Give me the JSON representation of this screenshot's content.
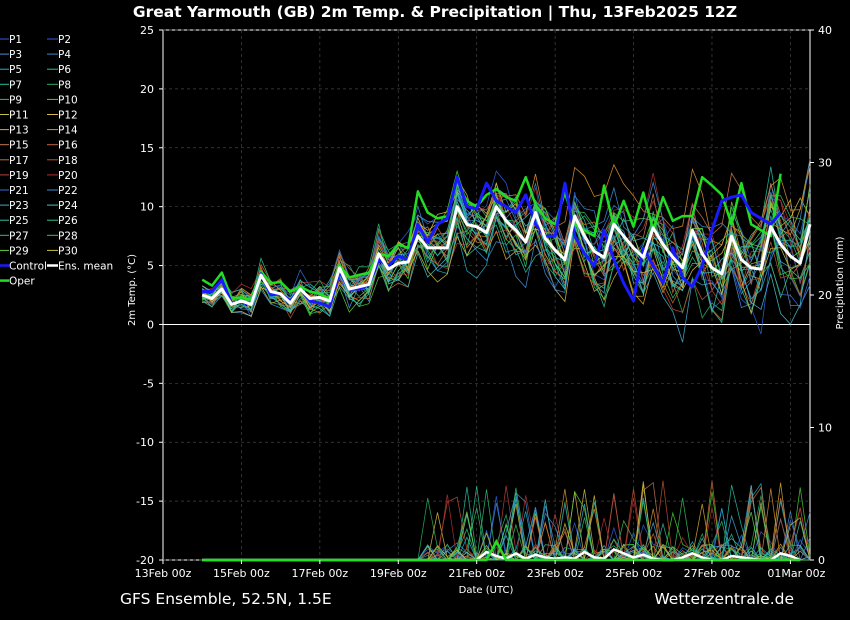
{
  "header": {
    "title": "Great Yarmouth  (GB)  2m Temp. & Precipitation | Thu, 13Feb2025 12Z"
  },
  "footer": {
    "left": "GFS Ensemble, 52.5N, 1.5E",
    "right": "Wetterzentrale.de"
  },
  "chart_data": {
    "type": "line",
    "x_label": "Date (UTC)",
    "y_label_left": "2m Temp. (°C)",
    "y_label_right": "Precipitation (mm)",
    "x_ticks": [
      "13Feb 00z",
      "15Feb 00z",
      "17Feb 00z",
      "19Feb 00z",
      "21Feb 00z",
      "23Feb 00z",
      "25Feb 00z",
      "27Feb 00z",
      "01Mar 00z"
    ],
    "x_tick_hours": [
      0,
      48,
      96,
      144,
      192,
      240,
      288,
      336,
      384
    ],
    "x_start_hour": 24,
    "step_hours": 6,
    "ylim_left": [
      -20,
      25
    ],
    "y_ticks_left": [
      25,
      20,
      15,
      10,
      5,
      0,
      -5,
      -10,
      -15,
      -20
    ],
    "right_axis": {
      "ylim_right": [
        0,
        40
      ],
      "y_ticks_right": [
        40,
        30,
        20,
        10,
        0
      ]
    },
    "grid": true,
    "legend": {
      "placement": "left",
      "entries": [
        {
          "label": "P1",
          "color": "#2f5fe0"
        },
        {
          "label": "P2",
          "color": "#2f5fe0"
        },
        {
          "label": "P3",
          "color": "#4a8fd8"
        },
        {
          "label": "P4",
          "color": "#3a8ad0"
        },
        {
          "label": "P5",
          "color": "#22b0c8"
        },
        {
          "label": "P6",
          "color": "#25c0a0"
        },
        {
          "label": "P7",
          "color": "#25c0a0"
        },
        {
          "label": "P8",
          "color": "#2ab060"
        },
        {
          "label": "P9",
          "color": "#30c060"
        },
        {
          "label": "P10",
          "color": "#4ad030"
        },
        {
          "label": "P11",
          "color": "#c8c040"
        },
        {
          "label": "P12",
          "color": "#d8b848"
        },
        {
          "label": "P13",
          "color": "#d8a830"
        },
        {
          "label": "P14",
          "color": "#d89030"
        },
        {
          "label": "P15",
          "color": "#c87850"
        },
        {
          "label": "P16",
          "color": "#c06a40"
        },
        {
          "label": "P17",
          "color": "#c86a30"
        },
        {
          "label": "P18",
          "color": "#c05030"
        },
        {
          "label": "P19",
          "color": "#b84040"
        },
        {
          "label": "P20",
          "color": "#b03030"
        },
        {
          "label": "P21",
          "color": "#3070d8"
        },
        {
          "label": "P22",
          "color": "#3a90d8"
        },
        {
          "label": "P23",
          "color": "#40a8d0"
        },
        {
          "label": "P24",
          "color": "#40c0c8"
        },
        {
          "label": "P25",
          "color": "#30c0a8"
        },
        {
          "label": "P26",
          "color": "#30c090"
        },
        {
          "label": "P27",
          "color": "#30c070"
        },
        {
          "label": "P28",
          "color": "#40c060"
        },
        {
          "label": "P29",
          "color": "#60d040"
        },
        {
          "label": "P30",
          "color": "#c8c040"
        },
        {
          "label": "Control",
          "color": "#1a1aff"
        },
        {
          "label": "Ens. mean",
          "color": "#ffffff"
        },
        {
          "label": "Oper",
          "color": "#22dd22"
        }
      ]
    },
    "highlight_series": [
      {
        "name": "Oper",
        "color": "#22dd22",
        "values": [
          3.8,
          3.3,
          4.4,
          2.2,
          2.3,
          2.1,
          4.5,
          3.5,
          3.6,
          2.8,
          3.2,
          2.8,
          2.6,
          2.2,
          5.0,
          4.0,
          4.2,
          4.4,
          6.0,
          5.8,
          6.8,
          6.5,
          11.3,
          9.5,
          9.0,
          9.2,
          12.0,
          10.5,
          10.0,
          11.0,
          11.5,
          10.8,
          10.5,
          12.5,
          10.2,
          9.0,
          8.5,
          11.2,
          8.5,
          8.0,
          7.5,
          11.8,
          8.3,
          10.5,
          8.3,
          11.2,
          8.0,
          10.8,
          8.8,
          9.2,
          9.2,
          12.5,
          11.8,
          11.0,
          8.5,
          12.0,
          8.5,
          8.0,
          7.5,
          12.8
        ]
      },
      {
        "name": "Control",
        "color": "#1a1aff",
        "values": [
          2.8,
          2.8,
          3.8,
          1.8,
          1.9,
          1.7,
          4.3,
          2.5,
          2.6,
          2.0,
          3.0,
          2.0,
          1.8,
          1.5,
          4.5,
          3.0,
          3.0,
          3.4,
          5.5,
          5.0,
          5.8,
          5.5,
          8.5,
          7.0,
          8.5,
          9.0,
          12.5,
          10.0,
          9.8,
          12.0,
          10.5,
          10.0,
          9.5,
          11.0,
          8.5,
          7.5,
          7.5,
          12.0,
          7.5,
          6.0,
          5.0,
          8.0,
          5.5,
          3.5,
          2.0,
          6.5,
          5.0,
          3.5,
          6.5,
          4.0,
          3.2,
          5.0,
          8.0,
          10.5,
          10.8,
          11.0,
          9.5,
          9.0,
          8.5,
          9.5
        ]
      },
      {
        "name": "Ens. mean",
        "color": "#ffffff",
        "values": [
          2.5,
          2.2,
          3.0,
          1.7,
          2.0,
          1.7,
          4.2,
          2.8,
          2.6,
          1.8,
          3.0,
          2.2,
          2.3,
          2.0,
          4.8,
          3.0,
          3.2,
          3.4,
          6.0,
          4.7,
          5.2,
          5.3,
          7.5,
          6.5,
          6.5,
          6.5,
          10.0,
          8.5,
          8.3,
          7.8,
          10.0,
          8.8,
          8.0,
          7.0,
          9.5,
          7.3,
          6.3,
          5.5,
          9.2,
          7.5,
          6.2,
          5.7,
          8.5,
          7.5,
          6.5,
          5.7,
          8.2,
          6.8,
          5.7,
          4.8,
          8.0,
          6.0,
          4.8,
          4.3,
          7.5,
          5.5,
          4.8,
          4.7,
          8.3,
          6.8,
          5.8,
          5.2,
          8.5
        ]
      }
    ],
    "precip_mean": [
      0,
      0,
      0,
      0,
      0,
      0,
      0,
      0,
      0,
      0,
      0,
      0,
      0,
      0,
      0,
      0,
      0,
      0,
      0,
      0,
      0,
      0,
      0,
      0,
      0,
      0,
      0,
      0,
      0,
      0.6,
      0.3,
      0.1,
      0.5,
      0.1,
      0.4,
      0.2,
      0.1,
      0.2,
      0.1,
      0.6,
      0.2,
      0.1,
      0.8,
      0.5,
      0.2,
      0.4,
      0.1,
      0,
      0,
      0.2,
      0.5,
      0.2,
      0,
      0,
      0.3,
      0.2,
      0.1,
      0,
      0,
      0.5,
      0.3,
      0
    ]
  }
}
